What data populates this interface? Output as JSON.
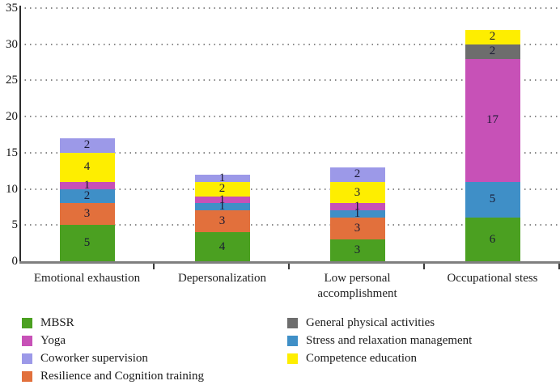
{
  "chart_data": {
    "type": "bar",
    "subtype": "stacked-vertical",
    "title": "",
    "xlabel": "",
    "ylabel": "",
    "ylim": [
      0,
      35
    ],
    "yticks": [
      0,
      5,
      10,
      15,
      20,
      25,
      30,
      35
    ],
    "grid": "dotted-horizontal",
    "categories": [
      "Emotional exhaustion",
      "Depersonalization",
      "Low personal accomplishment",
      "Occupational stess"
    ],
    "series": [
      {
        "name": "MBSR",
        "color": "#4ba021",
        "values": [
          5,
          4,
          3,
          6
        ]
      },
      {
        "name": "Resilience and Cognition training",
        "color": "#e2703c",
        "values": [
          3,
          3,
          3,
          0
        ]
      },
      {
        "name": "Stress and relaxation management",
        "color": "#3f8fc7",
        "values": [
          2,
          1,
          1,
          5
        ]
      },
      {
        "name": "Yoga",
        "color": "#c751b7",
        "values": [
          1,
          1,
          1,
          17
        ]
      },
      {
        "name": "General physical activities",
        "color": "#6d6d6d",
        "values": [
          0,
          0,
          0,
          2
        ]
      },
      {
        "name": "Competence education",
        "color": "#feee00",
        "values": [
          4,
          2,
          3,
          2
        ]
      },
      {
        "name": "Coworker supervision",
        "color": "#9c99e8",
        "values": [
          2,
          1,
          2,
          0
        ]
      }
    ],
    "bar_totals": [
      17,
      12,
      13,
      32
    ],
    "legend_position": "bottom"
  },
  "legend": {
    "columns": [
      [
        {
          "label": "MBSR",
          "color": "#4ba021"
        },
        {
          "label": "Yoga",
          "color": "#c751b7"
        },
        {
          "label": "Coworker supervision",
          "color": "#9c99e8"
        },
        {
          "label": "Resilience and Cognition training",
          "color": "#e2703c"
        }
      ],
      [
        {
          "label": "General physical activities",
          "color": "#6d6d6d"
        },
        {
          "label": "Stress and relaxation management",
          "color": "#3f8fc7"
        },
        {
          "label": "Competence education",
          "color": "#feee00"
        }
      ]
    ]
  }
}
